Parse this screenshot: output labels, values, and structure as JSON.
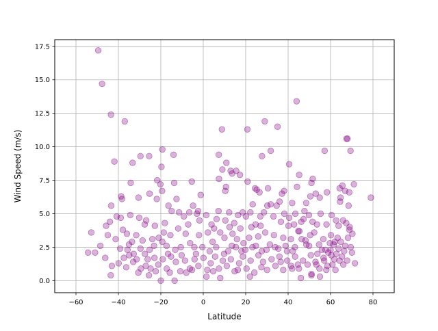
{
  "chart_data": {
    "type": "scatter",
    "title": "",
    "xlabel": "Latitude",
    "ylabel": "Wind Speed (m/s)",
    "xlim": [
      -70,
      90
    ],
    "ylim": [
      -0.9,
      18.0
    ],
    "xticks": [
      -60,
      -40,
      -20,
      0,
      20,
      40,
      60,
      80
    ],
    "xtick_labels": [
      "−60",
      "−40",
      "−20",
      "0",
      "20",
      "40",
      "60",
      "80"
    ],
    "yticks": [
      0.0,
      2.5,
      5.0,
      7.5,
      10.0,
      12.5,
      15.0,
      17.5
    ],
    "ytick_labels": [
      "0.0",
      "2.5",
      "5.0",
      "7.5",
      "10.0",
      "12.5",
      "15.0",
      "17.5"
    ],
    "grid": true,
    "legend": "none",
    "marker_color": "#800080",
    "marker_alpha": 0.3,
    "points": [
      [
        -49.5,
        17.2
      ],
      [
        -47.7,
        14.7
      ],
      [
        -43.5,
        12.4
      ],
      [
        -37.0,
        11.9
      ],
      [
        44.0,
        13.4
      ],
      [
        29.0,
        11.9
      ],
      [
        35.0,
        11.5
      ],
      [
        20.8,
        11.3
      ],
      [
        8.8,
        11.3
      ],
      [
        67.5,
        10.6
      ],
      [
        68.0,
        10.6
      ],
      [
        69.4,
        9.7
      ],
      [
        57.2,
        9.7
      ],
      [
        31.8,
        9.7
      ],
      [
        27.7,
        9.3
      ],
      [
        7.3,
        9.4
      ],
      [
        -19.3,
        9.8
      ],
      [
        -14.0,
        9.4
      ],
      [
        -29.6,
        9.3
      ],
      [
        -25.5,
        9.3
      ],
      [
        -41.9,
        8.9
      ],
      [
        -33.3,
        8.8
      ],
      [
        -19.7,
        8.5
      ],
      [
        9.0,
        8.3
      ],
      [
        10.9,
        8.8
      ],
      [
        12.9,
        8.2
      ],
      [
        15.5,
        8.2
      ],
      [
        13.6,
        8.0
      ],
      [
        17.3,
        7.9
      ],
      [
        40.5,
        8.7
      ],
      [
        45.2,
        7.9
      ],
      [
        51.6,
        7.6
      ],
      [
        7.4,
        7.6
      ],
      [
        -34.2,
        7.3
      ],
      [
        -13.7,
        7.3
      ],
      [
        -5.4,
        7.4
      ],
      [
        -21.7,
        7.5
      ],
      [
        -20.2,
        7.2
      ],
      [
        -21.9,
        6.1
      ],
      [
        -19.4,
        6.7
      ],
      [
        -25.3,
        6.5
      ],
      [
        -38.7,
        6.3
      ],
      [
        -38.3,
        6.1
      ],
      [
        -30.5,
        6.2
      ],
      [
        10.7,
        7.0
      ],
      [
        10.4,
        6.7
      ],
      [
        20.9,
        7.4
      ],
      [
        24.4,
        6.9
      ],
      [
        26.5,
        6.6
      ],
      [
        25.2,
        6.8
      ],
      [
        30.5,
        6.9
      ],
      [
        38.1,
        6.7
      ],
      [
        37.1,
        6.5
      ],
      [
        41.9,
        5.8
      ],
      [
        44.2,
        7.0
      ],
      [
        48.5,
        5.8
      ],
      [
        50.5,
        6.3
      ],
      [
        51.0,
        7.3
      ],
      [
        53.0,
        6.5
      ],
      [
        54.9,
        6.2
      ],
      [
        58.3,
        6.6
      ],
      [
        64.3,
        6.9
      ],
      [
        65.6,
        7.1
      ],
      [
        66.9,
        6.7
      ],
      [
        71.0,
        7.2
      ],
      [
        68.8,
        6.6
      ],
      [
        64.7,
        6.2
      ],
      [
        64.5,
        5.9
      ],
      [
        68.5,
        5.6
      ],
      [
        79.0,
        6.2
      ],
      [
        -43.4,
        5.6
      ],
      [
        -38.9,
        4.7
      ],
      [
        -34.4,
        4.9
      ],
      [
        -27.6,
        4.2
      ],
      [
        -26.9,
        4.5
      ],
      [
        -22.8,
        4.1
      ],
      [
        -18.1,
        4.3
      ],
      [
        -16.4,
        5.6
      ],
      [
        -14.9,
        5.2
      ],
      [
        -12.6,
        6.1
      ],
      [
        -11.4,
        5.1
      ],
      [
        -9.1,
        4.8
      ],
      [
        -6.6,
        5.1
      ],
      [
        -4.8,
        5.6
      ],
      [
        -3.0,
        5.0
      ],
      [
        -2.4,
        5.2
      ],
      [
        -1.2,
        6.4
      ],
      [
        1.4,
        4.9
      ],
      [
        3.9,
        4.2
      ],
      [
        6.3,
        4.6
      ],
      [
        7.2,
        5.2
      ],
      [
        10.4,
        4.5
      ],
      [
        12.2,
        5.1
      ],
      [
        14.6,
        4.3
      ],
      [
        16.4,
        4.9
      ],
      [
        18.6,
        5.1
      ],
      [
        20.1,
        4.8
      ],
      [
        22.2,
        5.1
      ],
      [
        23.3,
        5.7
      ],
      [
        24.7,
        4.2
      ],
      [
        26.9,
        4.8
      ],
      [
        28.6,
        5.1
      ],
      [
        30.2,
        5.6
      ],
      [
        31.8,
        5.7
      ],
      [
        33.1,
        4.8
      ],
      [
        34.6,
        5.6
      ],
      [
        36.6,
        4.4
      ],
      [
        38.2,
        5.0
      ],
      [
        40.5,
        4.7
      ],
      [
        42.8,
        4.2
      ],
      [
        43.4,
        5.0
      ],
      [
        46.2,
        4.4
      ],
      [
        47.7,
        5.2
      ],
      [
        49.8,
        4.9
      ],
      [
        51.5,
        4.4
      ],
      [
        53.6,
        4.2
      ],
      [
        55.3,
        5.0
      ],
      [
        58.1,
        4.2
      ],
      [
        60.5,
        4.9
      ],
      [
        62.6,
        4.5
      ],
      [
        63.8,
        4.1
      ],
      [
        65.9,
        4.5
      ],
      [
        67.4,
        4.3
      ],
      [
        68.9,
        3.8
      ],
      [
        70.3,
        3.5
      ],
      [
        -45.8,
        4.1
      ],
      [
        -44.0,
        4.4
      ],
      [
        -41.3,
        3.1
      ],
      [
        -37.9,
        3.8
      ],
      [
        -36.0,
        3.5
      ],
      [
        -35.0,
        2.7
      ],
      [
        -33.6,
        2.9
      ],
      [
        -31.6,
        3.4
      ],
      [
        -29.6,
        2.4
      ],
      [
        -27.5,
        2.0
      ],
      [
        -25.3,
        2.3
      ],
      [
        -23.2,
        2.6
      ],
      [
        -21.0,
        3.2
      ],
      [
        -19.3,
        2.9
      ],
      [
        -17.3,
        2.6
      ],
      [
        -15.5,
        3.4
      ],
      [
        -13.2,
        2.3
      ],
      [
        -10.6,
        2.5
      ],
      [
        -8.3,
        3.5
      ],
      [
        -6.2,
        2.8
      ],
      [
        -4.2,
        2.5
      ],
      [
        -2.0,
        3.4
      ],
      [
        -0.4,
        2.5
      ],
      [
        2.2,
        3.6
      ],
      [
        4.4,
        2.9
      ],
      [
        6.1,
        2.5
      ],
      [
        8.0,
        3.6
      ],
      [
        10.0,
        3.2
      ],
      [
        11.7,
        2.2
      ],
      [
        13.8,
        3.5
      ],
      [
        15.4,
        2.5
      ],
      [
        17.5,
        3.9
      ],
      [
        19.0,
        2.8
      ],
      [
        21.6,
        3.2
      ],
      [
        23.2,
        2.5
      ],
      [
        25.9,
        3.3
      ],
      [
        27.6,
        2.2
      ],
      [
        29.2,
        3.6
      ],
      [
        31.4,
        2.7
      ],
      [
        33.3,
        3.4
      ],
      [
        35.4,
        2.4
      ],
      [
        37.7,
        3.2
      ],
      [
        39.5,
        2.2
      ],
      [
        41.3,
        3.1
      ],
      [
        43.2,
        2.5
      ],
      [
        45.3,
        3.7
      ],
      [
        46.4,
        3.1
      ],
      [
        48.6,
        2.7
      ],
      [
        50.4,
        3.4
      ],
      [
        52.3,
        3.6
      ],
      [
        54.6,
        2.7
      ],
      [
        56.6,
        3.1
      ],
      [
        58.9,
        2.1
      ],
      [
        60.2,
        3.4
      ],
      [
        61.5,
        2.7
      ],
      [
        62.7,
        2.0
      ],
      [
        64.8,
        2.9
      ],
      [
        66.4,
        2.2
      ],
      [
        68.2,
        3.2
      ],
      [
        69.5,
        2.5
      ],
      [
        -54.3,
        2.1
      ],
      [
        -52.8,
        3.6
      ],
      [
        -51.0,
        2.1
      ],
      [
        -46.2,
        1.7
      ],
      [
        -43.1,
        1.1
      ],
      [
        -37.4,
        1.7
      ],
      [
        -36.3,
        1.0
      ],
      [
        -34.9,
        1.9
      ],
      [
        -33.0,
        1.4
      ],
      [
        -31.4,
        1.6
      ],
      [
        -29.4,
        0.9
      ],
      [
        -27.1,
        1.1
      ],
      [
        -24.8,
        0.9
      ],
      [
        -23.0,
        1.7
      ],
      [
        -21.2,
        1.2
      ],
      [
        -19.1,
        1.6
      ],
      [
        -17.2,
        0.9
      ],
      [
        -15.2,
        1.8
      ],
      [
        -12.9,
        1.4
      ],
      [
        -10.8,
        0.7
      ],
      [
        -8.6,
        1.5
      ],
      [
        -6.3,
        0.9
      ],
      [
        -4.1,
        1.6
      ],
      [
        -2.3,
        1.1
      ],
      [
        0.1,
        1.7
      ],
      [
        1.9,
        0.8
      ],
      [
        3.5,
        1.3
      ],
      [
        5.6,
        1.8
      ],
      [
        7.4,
        0.9
      ],
      [
        9.2,
        1.5
      ],
      [
        11.1,
        1.1
      ],
      [
        13.0,
        1.6
      ],
      [
        14.8,
        0.7
      ],
      [
        16.9,
        1.3
      ],
      [
        18.7,
        1.8
      ],
      [
        20.4,
        0.9
      ],
      [
        22.3,
        1.5
      ],
      [
        24.1,
        0.6
      ],
      [
        26.0,
        1.9
      ],
      [
        28.2,
        1.4
      ],
      [
        30.1,
        0.8
      ],
      [
        32.2,
        1.6
      ],
      [
        34.0,
        1.1
      ],
      [
        35.9,
        1.8
      ],
      [
        37.7,
        0.8
      ],
      [
        39.6,
        1.5
      ],
      [
        41.4,
        1.1
      ],
      [
        43.3,
        1.8
      ],
      [
        45.1,
        0.9
      ],
      [
        47.0,
        1.5
      ],
      [
        49.2,
        1.2
      ],
      [
        51.0,
        0.5
      ],
      [
        52.9,
        1.4
      ],
      [
        54.8,
        0.9
      ],
      [
        56.7,
        1.7
      ],
      [
        58.5,
        1.1
      ],
      [
        60.4,
        1.9
      ],
      [
        62.3,
        0.8
      ],
      [
        64.2,
        1.5
      ],
      [
        66.0,
        1.2
      ],
      [
        -43.6,
        0.4
      ],
      [
        -25.6,
        0.4
      ],
      [
        -20.0,
        0.0
      ],
      [
        -13.5,
        0.0
      ],
      [
        -8.0,
        0.6
      ],
      [
        1.5,
        0.3
      ],
      [
        8.0,
        0.2
      ],
      [
        22.0,
        0.3
      ],
      [
        46.0,
        0.2
      ],
      [
        51.0,
        0.4
      ],
      [
        55.0,
        0.3
      ],
      [
        -40.8,
        4.8
      ],
      [
        -30.2,
        4.7
      ],
      [
        44.8,
        3.7
      ],
      [
        47.3,
        4.6
      ],
      [
        -18.6,
        3.6
      ],
      [
        18.0,
        2.2
      ],
      [
        27.0,
        4.1
      ],
      [
        36.0,
        5.9
      ],
      [
        60.0,
        2.3
      ],
      [
        71.5,
        1.3
      ],
      [
        61.8,
        1.6
      ],
      [
        57.6,
        2.3
      ],
      [
        53.8,
        2.0
      ],
      [
        49.9,
        2.6
      ],
      [
        40.2,
        4.1
      ],
      [
        33.9,
        2.5
      ],
      [
        22.7,
        4.0
      ],
      [
        12.4,
        4.0
      ],
      [
        5.1,
        3.9
      ],
      [
        -1.8,
        4.5
      ],
      [
        -7.1,
        4.2
      ],
      [
        -11.8,
        3.9
      ],
      [
        -24.0,
        3.1
      ],
      [
        -28.6,
        3.0
      ],
      [
        -32.8,
        2.0
      ],
      [
        -39.2,
        2.4
      ],
      [
        -16.6,
        2.0
      ],
      [
        -10.2,
        1.9
      ],
      [
        3.0,
        2.2
      ],
      [
        13.5,
        2.6
      ],
      [
        19.8,
        2.3
      ],
      [
        24.8,
        2.6
      ],
      [
        29.8,
        2.3
      ],
      [
        38.8,
        2.6
      ],
      [
        42.2,
        2.2
      ],
      [
        55.9,
        2.3
      ],
      [
        59.7,
        2.8
      ],
      [
        63.3,
        3.2
      ],
      [
        66.9,
        2.6
      ],
      [
        48.2,
        3.0
      ],
      [
        15.9,
        3.1
      ],
      [
        -3.4,
        2.0
      ],
      [
        -26.2,
        1.6
      ],
      [
        -35.7,
        2.3
      ],
      [
        9.8,
        2.0
      ],
      [
        36.5,
        1.4
      ],
      [
        44.6,
        1.2
      ],
      [
        50.7,
        1.9
      ],
      [
        53.3,
        1.2
      ],
      [
        57.0,
        1.5
      ],
      [
        60.9,
        1.2
      ],
      [
        63.8,
        2.4
      ],
      [
        65.4,
        1.8
      ],
      [
        67.8,
        1.5
      ],
      [
        -48.5,
        2.6
      ],
      [
        -45.0,
        3.4
      ],
      [
        -39.9,
        1.3
      ],
      [
        -30.6,
        0.6
      ],
      [
        -22.4,
        0.7
      ],
      [
        -15.8,
        0.6
      ],
      [
        -5.3,
        0.8
      ],
      [
        4.7,
        0.7
      ],
      [
        16.3,
        0.8
      ],
      [
        27.4,
        1.0
      ],
      [
        41.9,
        0.9
      ],
      [
        58.0,
        0.8
      ],
      [
        70.1,
        2.1
      ],
      [
        69.0,
        4.0
      ],
      [
        62.0,
        2.9
      ]
    ]
  }
}
